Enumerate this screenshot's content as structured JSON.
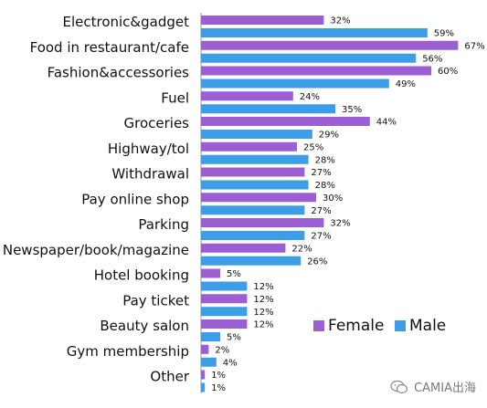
{
  "chart_data": {
    "type": "bar",
    "orientation": "horizontal",
    "categories": [
      "Electronic&gadget",
      "Food in restaurant/cafe",
      "Fashion&accessories",
      "Fuel",
      "Groceries",
      "Highway/tol",
      "Withdrawal",
      "Pay online shop",
      "Parking",
      "Newspaper/book/magazine",
      "Hotel booking",
      "Pay ticket",
      "Beauty salon",
      "Gym membership",
      "Other"
    ],
    "series": [
      {
        "name": "Female",
        "color": "#9b5fd3",
        "values": [
          32,
          67,
          60,
          24,
          44,
          25,
          27,
          30,
          32,
          22,
          5,
          12,
          12,
          2,
          1
        ]
      },
      {
        "name": "Male",
        "color": "#3b9ee6",
        "values": [
          59,
          56,
          49,
          35,
          29,
          28,
          28,
          27,
          27,
          26,
          12,
          12,
          5,
          4,
          1
        ]
      }
    ],
    "value_suffix": "%",
    "xlim": [
      0,
      67
    ],
    "grid": false,
    "legend": "bottom-right"
  },
  "watermark": {
    "text": "CAMIA出海",
    "icon": "wechat-icon"
  }
}
